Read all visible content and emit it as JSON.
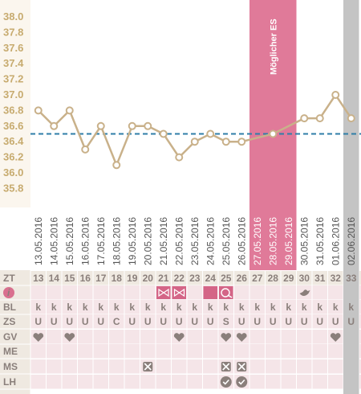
{
  "colors": {
    "line": "#c9b18a",
    "baseline": "#2f7ea8",
    "window": "#e07a99",
    "window_dark": "#d46587",
    "gray_col": "#c4c4c4",
    "row_bg": "#f5e5e8",
    "label_bg": "#efe9e1",
    "text": "#8a7f7b",
    "ytick": "#c7ab6f",
    "info_icon": "#d9708f"
  },
  "chart_data": {
    "type": "line",
    "y_ticks": [
      "38.0",
      "37.8",
      "37.6",
      "37.4",
      "37.2",
      "37.0",
      "36.8",
      "36.6",
      "36.4",
      "36.2",
      "36.0",
      "35.8"
    ],
    "ylim": [
      35.8,
      38.0
    ],
    "baseline": 36.4,
    "fertile_window_label": "Möglicher ES",
    "fertile_window_cycle_days": [
      27,
      28,
      29
    ],
    "gray_cycle_day": 33,
    "dates": [
      "13.05.2016",
      "14.05.2016",
      "15.05.2016",
      "16.05.2016",
      "17.05.2016",
      "18.05.2016",
      "19.05.2016",
      "20.05.2016",
      "21.05.2016",
      "22.05.2016",
      "23.05.2016",
      "24.05.2016",
      "25.05.2016",
      "26.05.2016",
      "27.05.2016",
      "28.05.2016",
      "29.05.2016",
      "30.05.2016",
      "31.05.2016",
      "01.06.2016",
      "02.06.2016"
    ],
    "cycle_days": [
      13,
      14,
      15,
      16,
      17,
      18,
      19,
      20,
      21,
      22,
      23,
      24,
      25,
      26,
      27,
      28,
      29,
      30,
      31,
      32,
      33
    ],
    "temperatures": [
      36.7,
      36.5,
      36.7,
      36.2,
      36.5,
      36.0,
      36.5,
      36.5,
      36.4,
      36.1,
      36.3,
      36.4,
      36.3,
      36.3,
      36.1,
      36.4,
      36.5,
      36.6,
      36.6,
      36.9,
      36.6
    ],
    "excluded_points": [
      14,
      16
    ]
  },
  "table": {
    "zt_label": "ZT",
    "bl_label": "BL",
    "zs_label": "ZS",
    "gv_label": "GV",
    "me_label": "ME",
    "ms_label": "MS",
    "lh_label": "LH",
    "bl_values": [
      "k",
      "k",
      "k",
      "k",
      "k",
      "k",
      "k",
      "k",
      "k",
      "k",
      "k",
      "k",
      "k",
      "k",
      "k",
      "k",
      "k",
      "k",
      "k",
      "k",
      "k"
    ],
    "zs_values": [
      "U",
      "U",
      "U",
      "U",
      "U",
      "C",
      "U",
      "U",
      "U",
      "U",
      "U",
      "U",
      "S",
      "U",
      "U",
      "U",
      "U",
      "U",
      "U",
      "U",
      "U"
    ],
    "gv_days": [
      0,
      2,
      9,
      12,
      13,
      19
    ],
    "ms_days": [
      7,
      12,
      13
    ],
    "lh_days": [
      12,
      13
    ],
    "event_icons": [
      {
        "day": 8,
        "icon": "bow-icon"
      },
      {
        "day": 9,
        "icon": "bow-icon"
      },
      {
        "day": 11,
        "icon": "blank"
      },
      {
        "day": 12,
        "icon": "tampon-icon"
      },
      {
        "day": 17,
        "icon": "bird-icon"
      }
    ]
  }
}
